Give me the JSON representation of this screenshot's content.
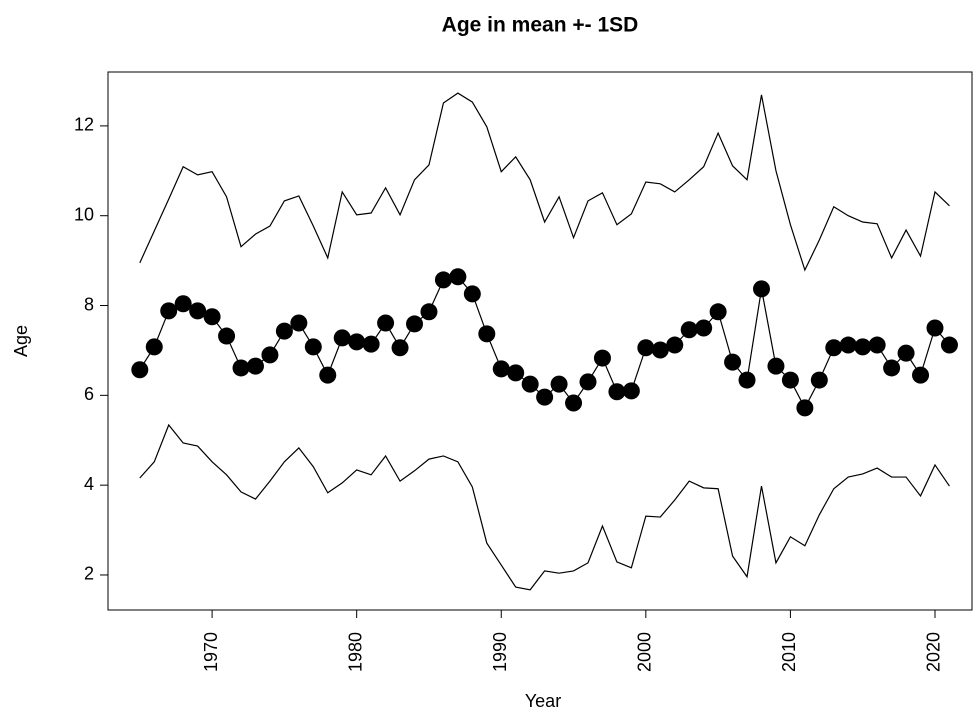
{
  "chart_data": {
    "type": "line",
    "title": "Age in mean +- 1SD",
    "x_label": "Year",
    "y_label": "Age",
    "x": [
      1965,
      1966,
      1967,
      1968,
      1969,
      1970,
      1971,
      1972,
      1973,
      1974,
      1975,
      1976,
      1977,
      1978,
      1979,
      1980,
      1981,
      1982,
      1983,
      1984,
      1985,
      1986,
      1987,
      1988,
      1989,
      1990,
      1991,
      1992,
      1993,
      1994,
      1995,
      1996,
      1997,
      1998,
      1999,
      2000,
      2001,
      2002,
      2003,
      2004,
      2005,
      2006,
      2007,
      2008,
      2009,
      2010,
      2011,
      2012,
      2013,
      2014,
      2015,
      2016,
      2017,
      2018,
      2019,
      2020,
      2021
    ],
    "series": [
      {
        "color": "#000000",
        "markers": false,
        "values": [
          8.95,
          9.66,
          10.37,
          11.09,
          10.91,
          10.98,
          10.42,
          9.31,
          9.59,
          9.77,
          10.33,
          10.44,
          9.77,
          9.06,
          10.53,
          10.02,
          10.06,
          10.62,
          10.02,
          10.8,
          11.13,
          12.51,
          12.73,
          12.53,
          11.98,
          10.98,
          11.31,
          10.8,
          9.86,
          10.42,
          9.51,
          10.33,
          10.51,
          9.8,
          10.04,
          10.75,
          10.71,
          10.53,
          10.8,
          11.09,
          11.84,
          11.11,
          10.8,
          12.69,
          11.0,
          9.8,
          8.79,
          9.46,
          10.2,
          10.0,
          9.86,
          9.82,
          9.06,
          9.68,
          9.1,
          10.53,
          10.22
        ]
      },
      {
        "color": "#000000",
        "markers": true,
        "values": [
          6.57,
          7.08,
          7.88,
          8.04,
          7.88,
          7.75,
          7.32,
          6.61,
          6.65,
          6.9,
          7.43,
          7.61,
          7.08,
          6.45,
          7.28,
          7.19,
          7.14,
          7.61,
          7.06,
          7.59,
          7.86,
          8.57,
          8.64,
          8.26,
          7.37,
          6.59,
          6.5,
          6.25,
          5.96,
          6.25,
          5.83,
          6.3,
          6.83,
          6.08,
          6.1,
          7.06,
          7.01,
          7.12,
          7.46,
          7.5,
          7.86,
          6.74,
          6.34,
          8.37,
          6.65,
          6.34,
          5.72,
          6.34,
          7.06,
          7.12,
          7.08,
          7.12,
          6.61,
          6.94,
          6.45,
          7.5,
          7.12
        ]
      },
      {
        "color": "#000000",
        "markers": false,
        "values": [
          4.16,
          4.52,
          5.34,
          4.94,
          4.87,
          4.52,
          4.23,
          3.85,
          3.69,
          4.09,
          4.52,
          4.83,
          4.41,
          3.83,
          4.05,
          4.34,
          4.23,
          4.65,
          4.09,
          4.32,
          4.58,
          4.65,
          4.52,
          3.96,
          2.71,
          2.22,
          1.73,
          1.67,
          2.09,
          2.04,
          2.09,
          2.27,
          3.09,
          2.29,
          2.16,
          3.31,
          3.29,
          3.67,
          4.09,
          3.94,
          3.92,
          2.42,
          1.96,
          3.98,
          2.27,
          2.85,
          2.65,
          3.34,
          3.92,
          4.18,
          4.25,
          4.38,
          4.18,
          4.18,
          3.76,
          4.45,
          3.98
        ]
      }
    ],
    "xlim": [
      1962.8,
      2022.56
    ],
    "xticks": [
      1970,
      1980,
      1990,
      2000,
      2010,
      2020
    ],
    "ylim": [
      1.22,
      13.2
    ],
    "yticks": [
      2,
      4,
      6,
      8,
      10,
      12
    ]
  }
}
